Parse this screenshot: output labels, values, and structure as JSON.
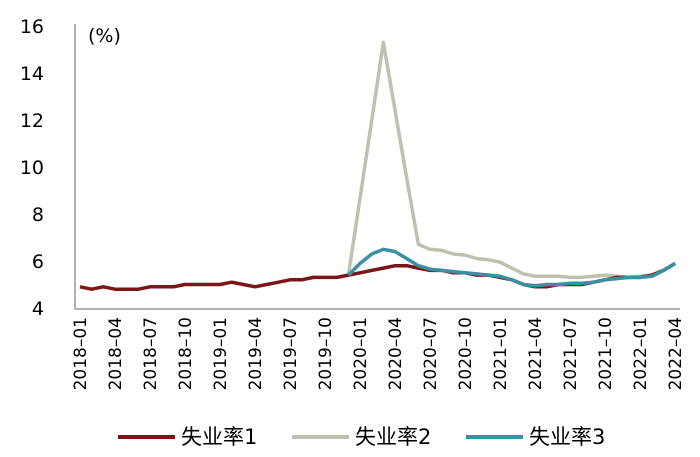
{
  "chart_data": {
    "type": "line",
    "title": "",
    "unit_label": "(%)",
    "xlabel": "",
    "ylabel": "(%)",
    "ylim": [
      4,
      16
    ],
    "yticks": [
      4,
      6,
      8,
      10,
      12,
      14,
      16
    ],
    "grid": false,
    "legend_position": "bottom",
    "x": [
      "2018-01",
      "2018-02",
      "2018-03",
      "2018-04",
      "2018-05",
      "2018-06",
      "2018-07",
      "2018-08",
      "2018-09",
      "2018-10",
      "2018-11",
      "2018-12",
      "2019-01",
      "2019-02",
      "2019-03",
      "2019-04",
      "2019-05",
      "2019-06",
      "2019-07",
      "2019-08",
      "2019-09",
      "2019-10",
      "2019-11",
      "2019-12",
      "2020-01",
      "2020-02",
      "2020-03",
      "2020-04",
      "2020-05",
      "2020-06",
      "2020-07",
      "2020-08",
      "2020-09",
      "2020-10",
      "2020-11",
      "2020-12",
      "2021-01",
      "2021-02",
      "2021-03",
      "2021-04",
      "2021-05",
      "2021-06",
      "2021-07",
      "2021-08",
      "2021-09",
      "2021-10",
      "2021-11",
      "2021-12",
      "2022-01",
      "2022-02",
      "2022-03",
      "2022-04"
    ],
    "xtick_labels": [
      "2018-01",
      "2018-04",
      "2018-07",
      "2018-10",
      "2019-01",
      "2019-04",
      "2019-07",
      "2019-10",
      "2020-01",
      "2020-04",
      "2020-07",
      "2020-10",
      "2021-01",
      "2021-04",
      "2021-07",
      "2021-10",
      "2022-01",
      "2022-04"
    ],
    "series": [
      {
        "name": "失业率1",
        "color": "#7a1518",
        "values": [
          4.9,
          4.8,
          4.9,
          4.8,
          4.8,
          4.8,
          4.9,
          4.9,
          4.9,
          5.0,
          5.0,
          5.0,
          5.0,
          5.1,
          5.0,
          4.9,
          5.0,
          5.1,
          5.2,
          5.2,
          5.3,
          5.3,
          5.3,
          5.4,
          5.5,
          5.6,
          5.7,
          5.8,
          5.8,
          5.7,
          5.6,
          5.6,
          5.5,
          5.5,
          5.4,
          5.4,
          5.3,
          5.2,
          5.0,
          4.9,
          4.9,
          5.0,
          5.0,
          5.0,
          5.1,
          5.2,
          5.3,
          5.3,
          5.3,
          5.4,
          5.6,
          5.9
        ]
      },
      {
        "name": "失业率2",
        "color": "#c0c0b0",
        "values": [
          null,
          null,
          null,
          null,
          null,
          null,
          null,
          null,
          null,
          null,
          null,
          null,
          null,
          null,
          null,
          null,
          null,
          null,
          null,
          null,
          null,
          null,
          null,
          5.4,
          8.7,
          12.0,
          15.3,
          12.4,
          9.5,
          6.7,
          6.5,
          6.45,
          6.3,
          6.25,
          6.1,
          6.05,
          5.95,
          5.7,
          5.45,
          5.35,
          5.35,
          5.35,
          5.3,
          5.3,
          5.35,
          5.4,
          5.35,
          5.3,
          5.35,
          5.4,
          5.6,
          5.9
        ]
      },
      {
        "name": "失业率3",
        "color": "#3c8fa2",
        "values": [
          null,
          null,
          null,
          null,
          null,
          null,
          null,
          null,
          null,
          null,
          null,
          null,
          null,
          null,
          null,
          null,
          null,
          null,
          null,
          null,
          null,
          null,
          null,
          5.4,
          5.9,
          6.3,
          6.5,
          6.4,
          6.1,
          5.8,
          5.65,
          5.6,
          5.55,
          5.5,
          5.45,
          5.4,
          5.35,
          5.2,
          5.0,
          4.95,
          5.0,
          5.0,
          5.05,
          5.05,
          5.1,
          5.2,
          5.25,
          5.3,
          5.3,
          5.35,
          5.6,
          5.9
        ]
      }
    ]
  },
  "legend": {
    "items": [
      {
        "label": "失业率1",
        "color": "#7a1518"
      },
      {
        "label": "失业率2",
        "color": "#c0c0b0"
      },
      {
        "label": "失业率3",
        "color": "#3c8fa2"
      }
    ]
  }
}
